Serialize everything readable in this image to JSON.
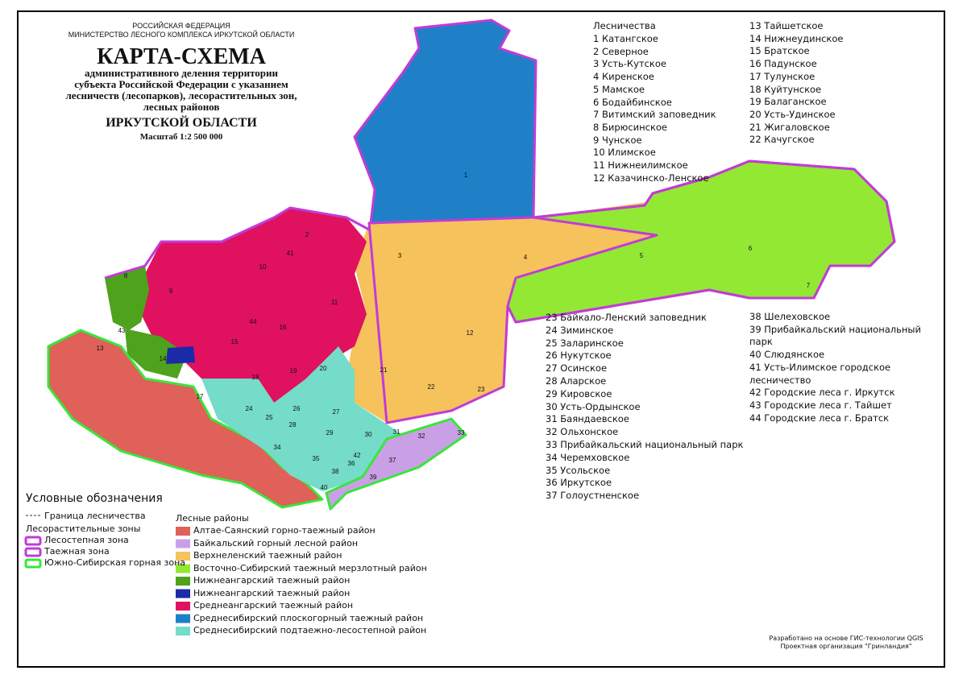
{
  "header": {
    "org1": "РОССИЙСКАЯ ФЕДЕРАЦИЯ",
    "org2": "МИНИСТЕРСТВО ЛЕСНОГО КОМПЛЕКСА ИРКУТСКОЙ ОБЛАСТИ",
    "title": "КАРТА-СХЕМА",
    "description": "административного деления территории субъекта Российской Федерации с указанием лесничеств (лесопарков), лесорастительных зон, лесных районов",
    "region": "ИРКУТСКОЙ ОБЛАСТИ",
    "scale": "Масштаб 1:2 500 000"
  },
  "forestries": {
    "heading": "Лесничества",
    "items": [
      "1 Катангское",
      "2 Северное",
      "3 Усть-Кутское",
      "4 Киренское",
      "5 Мамское",
      "6 Бодайбинское",
      "7 Витимский заповедник",
      "8 Бирюсинское",
      "9 Чунское",
      "10 Илимское",
      "11 Нижнеилимское",
      "12 Казачинско-Ленское",
      "13 Тайшетское",
      "14 Нижнеудинское",
      "15 Братское",
      "16 Падунское",
      "17 Тулунское",
      "18 Куйтунское",
      "19 Балаганское",
      "20 Усть-Удинское",
      "21 Жигаловское",
      "22 Качугское",
      "23 Байкало-Ленский заповедник",
      "24 Зиминское",
      "25 Заларинское",
      "26 Нукутское",
      "27 Осинское",
      "28 Аларское",
      "29 Кировское",
      "30 Усть-Ордынское",
      "31 Баяндаевское",
      "32 Ольхонское",
      "33 Прибайкальский национальный парк",
      "34 Черемховское",
      "35 Усольское",
      "36 Иркутское",
      "37 Голоустненское",
      "38 Шелеховское",
      "39 Прибайкальский национальный парк",
      "40 Слюдянское",
      "41 Усть-Илимское городское лесничество",
      "42 Городские леса г. Иркутск",
      "43 Городские леса г. Тайшет",
      "44 Городские леса г. Братск"
    ]
  },
  "map": {
    "labels": [
      "1",
      "2",
      "3",
      "4",
      "5",
      "6",
      "7",
      "8",
      "9",
      "10",
      "11",
      "12",
      "13",
      "14",
      "15",
      "16",
      "17",
      "18",
      "19",
      "20",
      "21",
      "22",
      "23",
      "24",
      "25",
      "26",
      "27",
      "28",
      "29",
      "30",
      "31",
      "32",
      "33",
      "34",
      "35",
      "36",
      "37",
      "38",
      "39",
      "40",
      "41",
      "42",
      "43",
      "44"
    ]
  },
  "legend": {
    "title": "Условные обозначения",
    "boundary": "Граница лесничества",
    "zones_heading": "Лесорастительные зоны",
    "zones": [
      {
        "name": "Лесостепная зона",
        "color": "#c23bd6"
      },
      {
        "name": "Таежная зона",
        "color": "#c23bd6"
      },
      {
        "name": "Южно-Сибирская горная зона",
        "color": "#39e639"
      }
    ],
    "regions_heading": "Лесные районы",
    "regions": [
      {
        "name": "Алтае-Саянский горно-таежный район",
        "color": "#e0605a"
      },
      {
        "name": "Байкальский горный лесной район",
        "color": "#c9a0e6"
      },
      {
        "name": "Верхнеленский таежный район",
        "color": "#f5c25c"
      },
      {
        "name": "Восточно-Сибирский таежный мерзлотный район",
        "color": "#93e834"
      },
      {
        "name": "Нижнеангарский таежный район",
        "color": "#4ea21c"
      },
      {
        "name": "Нижнеангарский таежный район",
        "color": "#1b2aa8"
      },
      {
        "name": "Среднеангарский таежный район",
        "color": "#e0115f"
      },
      {
        "name": "Среднесибирский плоскогорный таежный район",
        "color": "#1f80c8"
      },
      {
        "name": "Среднесибирский подтаежно-лесостепной район",
        "color": "#74dcc9"
      }
    ]
  },
  "footer": {
    "line1": "Разработано на основе ГИС-технологии QGIS",
    "line2": "Проектная организация \"Гринландия\""
  }
}
